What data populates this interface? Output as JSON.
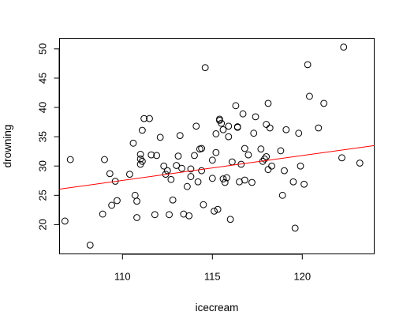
{
  "chart_data": {
    "type": "scatter",
    "title": "",
    "xlabel": "icecream",
    "ylabel": "drowning",
    "xlim": [
      106.5,
      124.0
    ],
    "ylim": [
      15.0,
      51.8
    ],
    "xticks": [
      110,
      115,
      120
    ],
    "yticks": [
      20,
      25,
      30,
      35,
      40,
      45,
      50
    ],
    "grid": false,
    "legend": "none",
    "regression_line": {
      "intercept": -19.15,
      "slope": 0.4245,
      "color": "#ff0000"
    },
    "colors": {
      "points": "#000000",
      "line": "#ff0000",
      "frame": "#000000"
    },
    "points": [
      {
        "x": 106.8,
        "y": 20.6
      },
      {
        "x": 107.1,
        "y": 31.1
      },
      {
        "x": 108.2,
        "y": 16.5
      },
      {
        "x": 108.9,
        "y": 21.8
      },
      {
        "x": 109.0,
        "y": 31.1
      },
      {
        "x": 109.3,
        "y": 28.7
      },
      {
        "x": 109.4,
        "y": 23.3
      },
      {
        "x": 109.6,
        "y": 27.4
      },
      {
        "x": 109.7,
        "y": 24.1
      },
      {
        "x": 110.4,
        "y": 28.6
      },
      {
        "x": 110.6,
        "y": 33.9
      },
      {
        "x": 110.7,
        "y": 25.0
      },
      {
        "x": 110.8,
        "y": 21.2
      },
      {
        "x": 110.8,
        "y": 24.0
      },
      {
        "x": 111.0,
        "y": 31.2
      },
      {
        "x": 111.0,
        "y": 32.0
      },
      {
        "x": 111.0,
        "y": 30.3
      },
      {
        "x": 111.1,
        "y": 30.8
      },
      {
        "x": 111.1,
        "y": 36.1
      },
      {
        "x": 111.2,
        "y": 38.1
      },
      {
        "x": 111.5,
        "y": 38.1
      },
      {
        "x": 111.6,
        "y": 31.9
      },
      {
        "x": 111.8,
        "y": 21.7
      },
      {
        "x": 111.9,
        "y": 31.8
      },
      {
        "x": 112.1,
        "y": 34.9
      },
      {
        "x": 112.3,
        "y": 30.0
      },
      {
        "x": 112.4,
        "y": 28.6
      },
      {
        "x": 112.5,
        "y": 29.2
      },
      {
        "x": 112.6,
        "y": 21.7
      },
      {
        "x": 112.7,
        "y": 27.7
      },
      {
        "x": 112.8,
        "y": 24.2
      },
      {
        "x": 113.0,
        "y": 30.1
      },
      {
        "x": 113.1,
        "y": 31.7
      },
      {
        "x": 113.2,
        "y": 35.2
      },
      {
        "x": 113.3,
        "y": 29.6
      },
      {
        "x": 113.4,
        "y": 21.8
      },
      {
        "x": 113.6,
        "y": 26.5
      },
      {
        "x": 113.7,
        "y": 21.5
      },
      {
        "x": 113.8,
        "y": 28.2
      },
      {
        "x": 113.8,
        "y": 29.5
      },
      {
        "x": 114.0,
        "y": 31.8
      },
      {
        "x": 114.1,
        "y": 36.8
      },
      {
        "x": 114.2,
        "y": 27.3
      },
      {
        "x": 114.3,
        "y": 32.9
      },
      {
        "x": 114.4,
        "y": 33.0
      },
      {
        "x": 114.4,
        "y": 29.2
      },
      {
        "x": 114.5,
        "y": 23.4
      },
      {
        "x": 114.6,
        "y": 46.8
      },
      {
        "x": 115.0,
        "y": 27.9
      },
      {
        "x": 115.0,
        "y": 31.0
      },
      {
        "x": 115.1,
        "y": 22.3
      },
      {
        "x": 115.2,
        "y": 35.5
      },
      {
        "x": 115.2,
        "y": 32.3
      },
      {
        "x": 115.3,
        "y": 22.6
      },
      {
        "x": 115.4,
        "y": 37.8
      },
      {
        "x": 115.4,
        "y": 38.0
      },
      {
        "x": 115.5,
        "y": 37.3
      },
      {
        "x": 115.6,
        "y": 36.2
      },
      {
        "x": 115.6,
        "y": 27.8
      },
      {
        "x": 115.7,
        "y": 27.2
      },
      {
        "x": 115.8,
        "y": 28.0
      },
      {
        "x": 115.9,
        "y": 35.0
      },
      {
        "x": 115.9,
        "y": 36.8
      },
      {
        "x": 116.0,
        "y": 20.9
      },
      {
        "x": 116.1,
        "y": 30.7
      },
      {
        "x": 116.3,
        "y": 40.3
      },
      {
        "x": 116.4,
        "y": 36.6
      },
      {
        "x": 116.4,
        "y": 36.7
      },
      {
        "x": 116.5,
        "y": 27.3
      },
      {
        "x": 116.6,
        "y": 30.3
      },
      {
        "x": 116.7,
        "y": 38.9
      },
      {
        "x": 116.8,
        "y": 33.0
      },
      {
        "x": 116.8,
        "y": 27.6
      },
      {
        "x": 117.0,
        "y": 31.9
      },
      {
        "x": 117.2,
        "y": 27.2
      },
      {
        "x": 117.3,
        "y": 35.6
      },
      {
        "x": 117.4,
        "y": 38.4
      },
      {
        "x": 117.7,
        "y": 32.9
      },
      {
        "x": 117.8,
        "y": 30.8
      },
      {
        "x": 117.9,
        "y": 31.2
      },
      {
        "x": 118.0,
        "y": 37.1
      },
      {
        "x": 118.0,
        "y": 31.6
      },
      {
        "x": 118.1,
        "y": 40.7
      },
      {
        "x": 118.1,
        "y": 29.4
      },
      {
        "x": 118.2,
        "y": 36.5
      },
      {
        "x": 118.3,
        "y": 30.0
      },
      {
        "x": 118.8,
        "y": 32.6
      },
      {
        "x": 118.9,
        "y": 25.0
      },
      {
        "x": 119.0,
        "y": 29.2
      },
      {
        "x": 119.1,
        "y": 36.2
      },
      {
        "x": 119.5,
        "y": 27.3
      },
      {
        "x": 119.6,
        "y": 19.4
      },
      {
        "x": 119.8,
        "y": 35.6
      },
      {
        "x": 119.9,
        "y": 30.0
      },
      {
        "x": 120.1,
        "y": 26.9
      },
      {
        "x": 120.3,
        "y": 47.3
      },
      {
        "x": 120.4,
        "y": 41.9
      },
      {
        "x": 120.9,
        "y": 36.5
      },
      {
        "x": 121.2,
        "y": 40.7
      },
      {
        "x": 122.2,
        "y": 31.4
      },
      {
        "x": 122.3,
        "y": 50.3
      },
      {
        "x": 123.2,
        "y": 30.5
      }
    ]
  }
}
